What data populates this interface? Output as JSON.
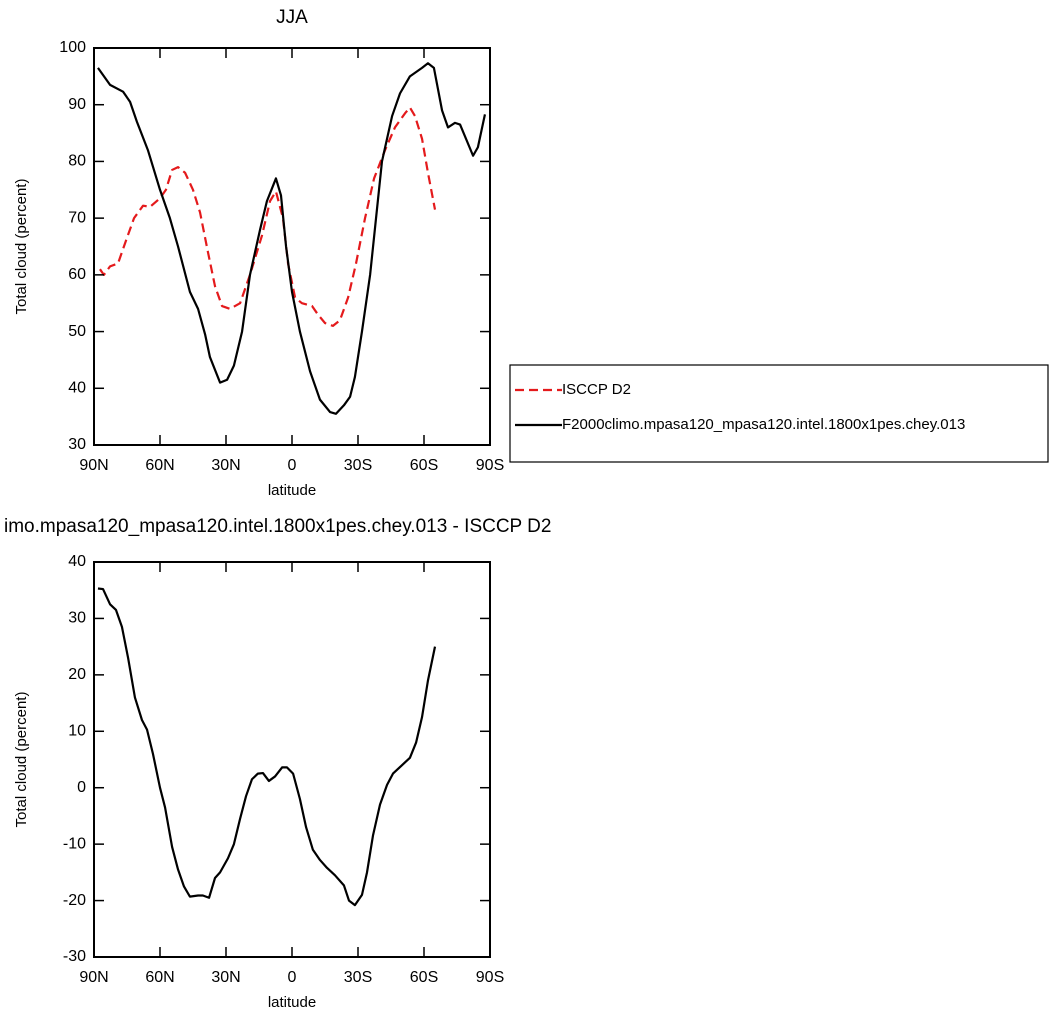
{
  "chart_data": [
    {
      "type": "line",
      "title": "JJA",
      "xlabel": "latitude",
      "ylabel": "Total cloud (percent)",
      "xlim": [
        90,
        -90
      ],
      "xticks": [
        {
          "value": 90,
          "label": "90N"
        },
        {
          "value": 60,
          "label": "60N"
        },
        {
          "value": 30,
          "label": "30N"
        },
        0,
        {
          "value": -30,
          "label": "30S"
        },
        {
          "value": -60,
          "label": "60S"
        },
        {
          "value": -90,
          "label": "90S"
        }
      ],
      "ylim": [
        30,
        100
      ],
      "yticks": [
        30,
        40,
        50,
        60,
        70,
        80,
        90,
        100
      ],
      "legend": "right",
      "series": [
        {
          "name": "ISCCP D2",
          "color": "#e41a1c",
          "dashed": true,
          "x": [
            87.3,
            85.5,
            82.7,
            79.1,
            75.5,
            71.8,
            67.7,
            64.5,
            60,
            57.3,
            54.5,
            51.8,
            48.6,
            45,
            41.8,
            38.2,
            35,
            31.8,
            28.2,
            23.6,
            19.1,
            13.6,
            10,
            7.3,
            4.1,
            1.8,
            -1.4,
            -4.5,
            -9.1,
            -11.8,
            -15,
            -18.6,
            -21.8,
            -25.5,
            -29.1,
            -33.2,
            -37.3,
            -42.3,
            -46.8,
            -51.4,
            -53.6,
            -55.9,
            -59.1,
            -61.8,
            -65
          ],
          "values": [
            61,
            60,
            61.5,
            62,
            66,
            70,
            72.2,
            72,
            73.5,
            75,
            78.5,
            79,
            78,
            75,
            71,
            64,
            58,
            54.5,
            54,
            55,
            60,
            67,
            73,
            74.7,
            70,
            62,
            56,
            55,
            54.5,
            53,
            51.5,
            51,
            52,
            56,
            62,
            70,
            77,
            82,
            86,
            88.5,
            89.5,
            88,
            84,
            78,
            71.5
          ]
        },
        {
          "name": "F2000climo.mpasa120_mpasa120.intel.1800x1pes.chey.013",
          "color": "#000000",
          "dashed": false,
          "x": [
            88.2,
            82.7,
            76.8,
            73.6,
            70.5,
            65.5,
            60,
            55.5,
            51.8,
            46.4,
            42.7,
            39.5,
            37.3,
            32.7,
            29.5,
            26.4,
            22.7,
            19.1,
            14.5,
            11.4,
            7.3,
            5,
            2.7,
            0,
            -3.6,
            -8.2,
            -12.7,
            -17.3,
            -20,
            -23.6,
            -26.4,
            -28.6,
            -31.8,
            -35.5,
            -38.2,
            -40.9,
            -45.5,
            -49.1,
            -53.6,
            -59.1,
            -61.8,
            -64.5,
            -68.2,
            -70.9,
            -74.1,
            -76.4,
            -82.3,
            -84.5,
            -87.7
          ],
          "values": [
            96.5,
            93.5,
            92.3,
            90.5,
            87,
            82,
            75,
            70,
            65,
            57,
            54,
            49.5,
            45.5,
            41,
            41.5,
            44,
            50,
            60,
            68,
            73,
            77,
            74,
            65,
            57,
            50,
            43,
            38,
            35.8,
            35.5,
            37,
            38.5,
            42,
            50,
            60,
            70,
            80,
            88,
            92,
            95,
            96.5,
            97.3,
            96.5,
            89,
            86,
            86.8,
            86.5,
            81,
            82.5,
            88.3
          ]
        }
      ]
    },
    {
      "type": "line",
      "title": "imo.mpasa120_mpasa120.intel.1800x1pes.chey.013 - ISCCP D2",
      "xlabel": "latitude",
      "ylabel": "Total cloud (percent)",
      "xlim": [
        90,
        -90
      ],
      "xticks": [
        {
          "value": 90,
          "label": "90N"
        },
        {
          "value": 60,
          "label": "60N"
        },
        {
          "value": 30,
          "label": "30N"
        },
        0,
        {
          "value": -30,
          "label": "30S"
        },
        {
          "value": -60,
          "label": "60S"
        },
        {
          "value": -90,
          "label": "90S"
        }
      ],
      "ylim": [
        -30,
        40
      ],
      "yticks": [
        -30,
        -20,
        -10,
        0,
        10,
        20,
        30,
        40
      ],
      "series": [
        {
          "color": "#000000",
          "dashed": false,
          "x": [
            88.2,
            85.9,
            82.7,
            80,
            77.3,
            74.5,
            71.4,
            68.2,
            65.9,
            63.2,
            60,
            57.7,
            54.5,
            51.8,
            49.1,
            46.4,
            42.7,
            40.5,
            37.7,
            35,
            32.7,
            29.1,
            26.4,
            23.6,
            20.9,
            18.2,
            15.5,
            13.2,
            10.5,
            7.7,
            4.5,
            2.3,
            -0.5,
            -3.6,
            -6.4,
            -9.5,
            -12.7,
            -15.9,
            -19.5,
            -23.6,
            -25.9,
            -28.6,
            -31.8,
            -34.1,
            -36.8,
            -40,
            -43.2,
            -45.9,
            -50,
            -53.6,
            -56.4,
            -59.1,
            -61.8,
            -65
          ],
          "values": [
            35.3,
            35.2,
            32.5,
            31.5,
            28.5,
            23,
            16,
            12,
            10.3,
            6,
            0,
            -3.5,
            -10.5,
            -14.5,
            -17.5,
            -19.3,
            -19.1,
            -19.1,
            -19.5,
            -16,
            -15,
            -12.5,
            -10,
            -5.5,
            -1.5,
            1.5,
            2.5,
            2.6,
            1.2,
            2,
            3.6,
            3.6,
            2.5,
            -2,
            -7,
            -11,
            -12.8,
            -14.2,
            -15.5,
            -17.3,
            -20,
            -20.8,
            -19,
            -15,
            -8.5,
            -3,
            0.5,
            2.5,
            4,
            5.3,
            8,
            12.5,
            19,
            25
          ]
        }
      ]
    }
  ]
}
